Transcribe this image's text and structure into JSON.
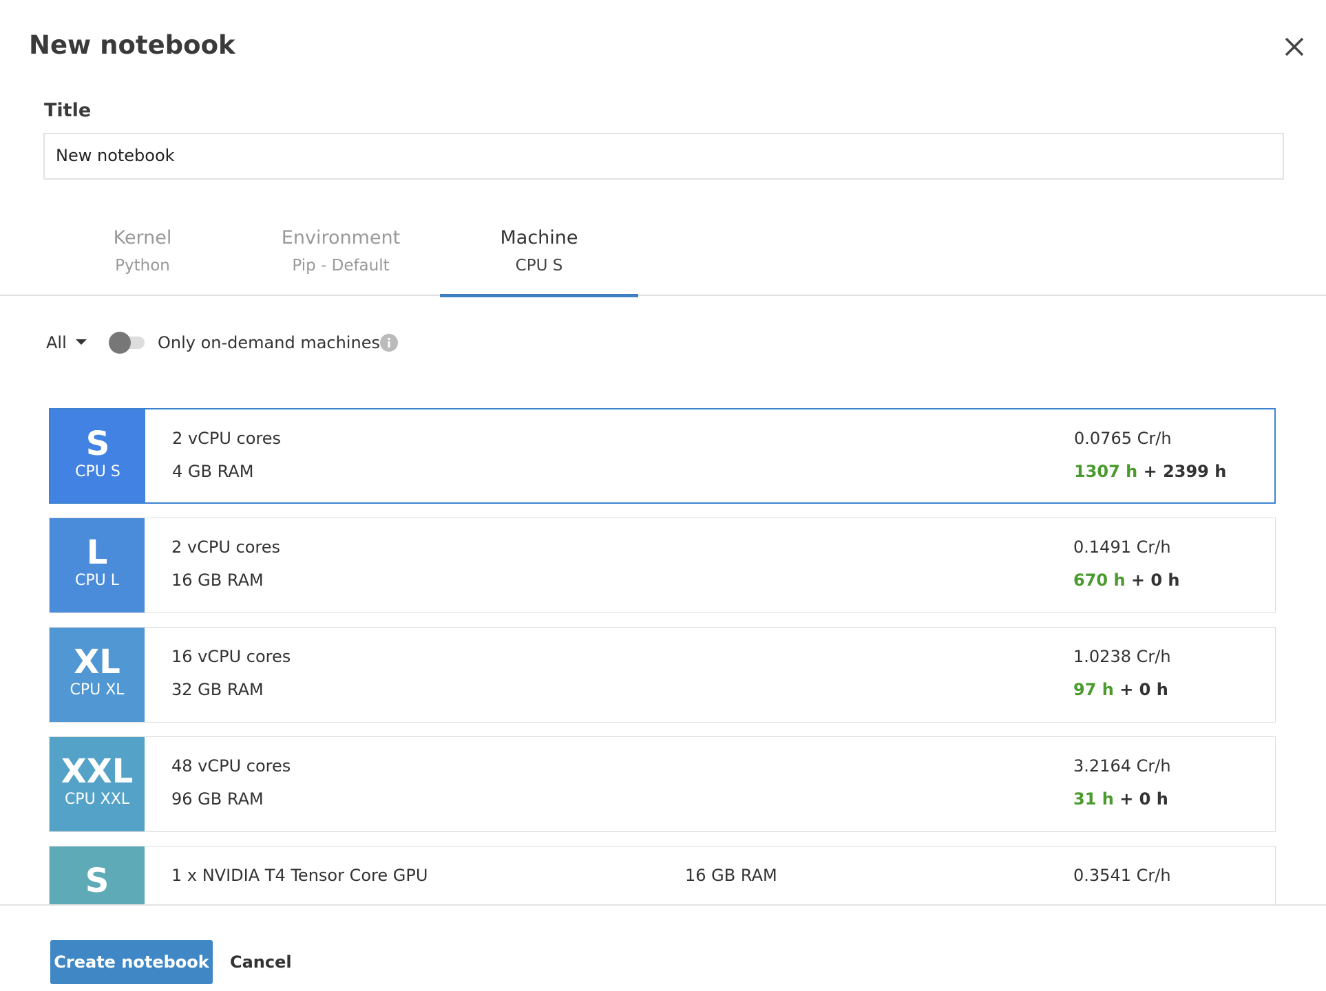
{
  "header": {
    "title": "New notebook"
  },
  "form": {
    "title_label": "Title",
    "title_value": "New notebook"
  },
  "tabs": [
    {
      "label": "Kernel",
      "value": "Python"
    },
    {
      "label": "Environment",
      "value": "Pip - Default"
    },
    {
      "label": "Machine",
      "value": "CPU S"
    }
  ],
  "filters": {
    "dropdown": "All",
    "toggle_label": "Only on-demand machines"
  },
  "machines": [
    {
      "size": "S",
      "name": "CPU S",
      "spec1": "2 vCPU cores",
      "spec2": "4 GB RAM",
      "price": "0.0765 Cr/h",
      "hours_free": "1307 h",
      "hours_rest": "+ 2399 h",
      "color": "#4282e2"
    },
    {
      "size": "L",
      "name": "CPU L",
      "spec1": "2 vCPU cores",
      "spec2": "16 GB RAM",
      "price": "0.1491 Cr/h",
      "hours_free": "670 h",
      "hours_rest": "+ 0 h",
      "color": "#4a8cda"
    },
    {
      "size": "XL",
      "name": "CPU XL",
      "spec1": "16 vCPU cores",
      "spec2": "32 GB RAM",
      "price": "1.0238 Cr/h",
      "hours_free": "97 h",
      "hours_rest": "+ 0 h",
      "color": "#5097d3"
    },
    {
      "size": "XXL",
      "name": "CPU XXL",
      "spec1": "48 vCPU cores",
      "spec2": "96 GB RAM",
      "price": "3.2164 Cr/h",
      "hours_free": "31 h",
      "hours_rest": "+ 0 h",
      "color": "#55a2c8"
    },
    {
      "size": "S",
      "spec1": "1 x NVIDIA T4 Tensor Core GPU",
      "spec3": "16 GB RAM",
      "price": "0.3541 Cr/h",
      "color": "#5eaab6"
    }
  ],
  "footer": {
    "primary": "Create notebook",
    "secondary": "Cancel"
  }
}
